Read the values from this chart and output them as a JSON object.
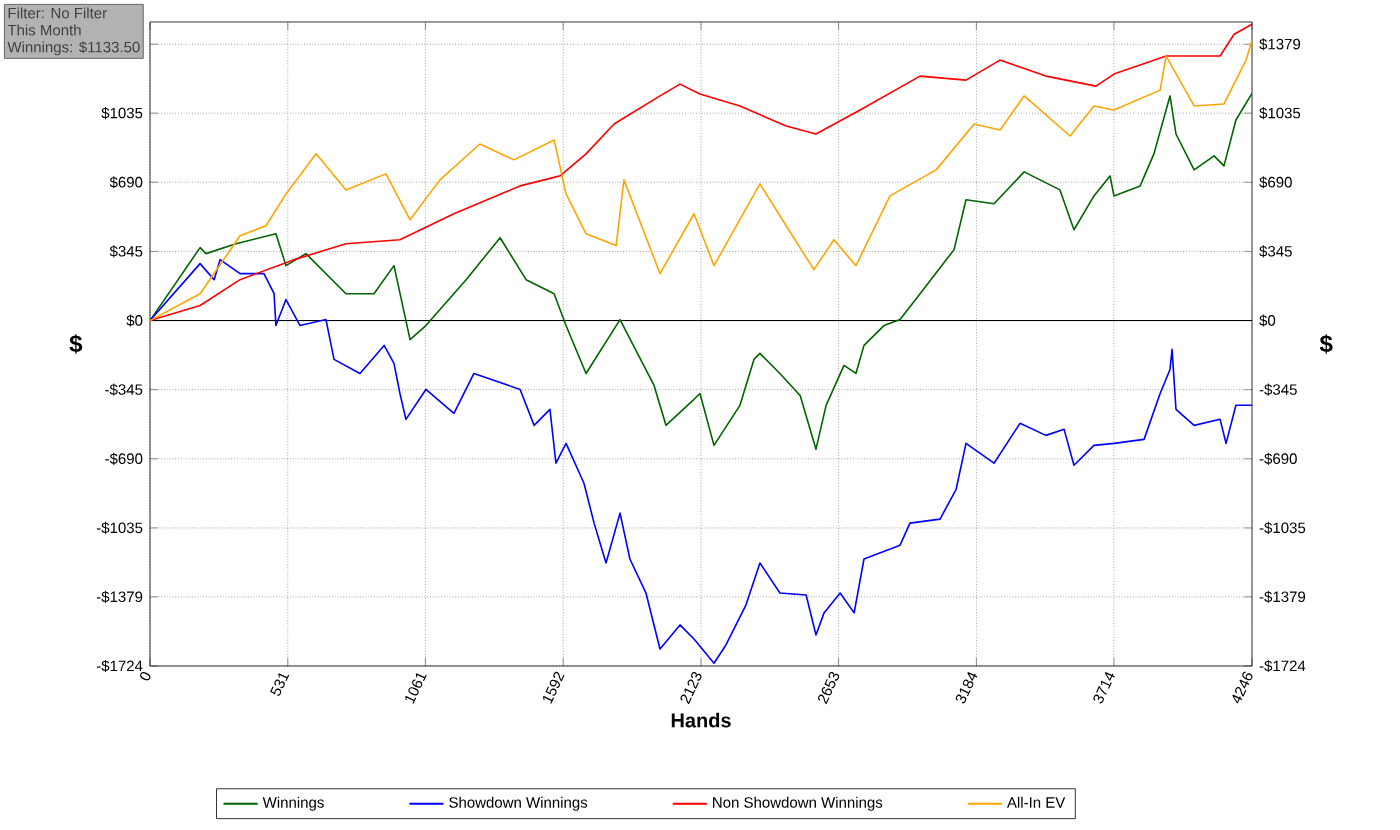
{
  "chart_data": {
    "type": "line",
    "xlabel": "Hands",
    "ylabel": "$",
    "y2label": "$",
    "xlim": [
      0,
      4246
    ],
    "xticks": [
      0,
      531,
      1061,
      1592,
      2123,
      2653,
      3184,
      3714,
      4246
    ],
    "ylim": [
      -1724,
      1490
    ],
    "yticks": [
      {
        "value": -1724,
        "label": "-$1724"
      },
      {
        "value": -1379,
        "label": "-$1379"
      },
      {
        "value": -1035,
        "label": "-$1035"
      },
      {
        "value": -690,
        "label": "-$690"
      },
      {
        "value": -345,
        "label": "-$345"
      },
      {
        "value": 0,
        "label": "$0"
      },
      {
        "value": 345,
        "label": "$345"
      },
      {
        "value": 690,
        "label": "$690"
      },
      {
        "value": 1035,
        "label": "$1035"
      },
      {
        "value": 1379,
        "label": null
      }
    ],
    "y2lim": [
      -1724,
      1490
    ],
    "y2ticks": [
      {
        "value": -1724,
        "label": "-$1724"
      },
      {
        "value": -1379,
        "label": "-$1379"
      },
      {
        "value": -1035,
        "label": "-$1035"
      },
      {
        "value": -690,
        "label": "-$690"
      },
      {
        "value": -345,
        "label": "-$345"
      },
      {
        "value": 0,
        "label": "$0"
      },
      {
        "value": 345,
        "label": "$345"
      },
      {
        "value": 690,
        "label": "$690"
      },
      {
        "value": 1035,
        "label": "$1035"
      },
      {
        "value": 1379,
        "label": "$1379"
      }
    ],
    "grid": true,
    "legend": "bottom",
    "ref_lines": [
      {
        "axis": "y",
        "value": 0,
        "color": "#000000"
      }
    ],
    "annotations": [
      "Filter: No Filter",
      "This Month",
      "Winnings: $1133.50"
    ],
    "series": [
      {
        "name": "Winnings",
        "color": "#006400",
        "x": [
          0,
          193,
          216,
          331,
          485,
          524,
          601,
          755,
          863,
          940,
          1002,
          1063,
          1218,
          1349,
          1449,
          1557,
          1603,
          1680,
          1811,
          1942,
          1988,
          2096,
          2119,
          2173,
          2273,
          2327,
          2350,
          2427,
          2505,
          2566,
          2605,
          2674,
          2720,
          2751,
          2828,
          2890,
          2967,
          3098,
          3144,
          3252,
          3368,
          3506,
          3560,
          3637,
          3699,
          3714,
          3815,
          3868,
          3930,
          3953,
          4023,
          4100,
          4138,
          4184,
          4246
        ],
        "values": [
          0,
          364,
          334,
          383,
          433,
          274,
          334,
          134,
          134,
          274,
          -95,
          -25,
          204,
          413,
          204,
          134,
          -25,
          -264,
          5,
          -324,
          -523,
          -393,
          -364,
          -623,
          -423,
          -194,
          -164,
          -264,
          -374,
          -642,
          -423,
          -224,
          -264,
          -124,
          -25,
          5,
          134,
          354,
          603,
          583,
          742,
          652,
          453,
          622,
          722,
          622,
          672,
          832,
          1121,
          931,
          752,
          822,
          772,
          1001,
          1133.5
        ]
      },
      {
        "name": "Showdown Winnings",
        "color": "#0000ff",
        "x": [
          0,
          193,
          247,
          270,
          347,
          439,
          478,
          485,
          524,
          578,
          678,
          709,
          809,
          902,
          940,
          963,
          986,
          1063,
          1171,
          1248,
          1426,
          1480,
          1541,
          1564,
          1603,
          1672,
          1711,
          1757,
          1811,
          1849,
          1911,
          1965,
          2042,
          2096,
          2173,
          2219,
          2296,
          2350,
          2427,
          2528,
          2566,
          2597,
          2659,
          2713,
          2751,
          2890,
          2928,
          3044,
          3106,
          3144,
          3252,
          3352,
          3452,
          3522,
          3560,
          3637,
          3714,
          3830,
          3892,
          3930,
          3938,
          3953,
          4023,
          4123,
          4146,
          4184,
          4246
        ],
        "values": [
          0,
          284,
          204,
          304,
          234,
          234,
          134,
          -25,
          105,
          -25,
          5,
          -194,
          -264,
          -124,
          -214,
          -364,
          -493,
          -344,
          -463,
          -264,
          -344,
          -523,
          -443,
          -712,
          -613,
          -812,
          -1011,
          -1210,
          -961,
          -1190,
          -1360,
          -1639,
          -1519,
          -1589,
          -1710,
          -1619,
          -1420,
          -1210,
          -1360,
          -1370,
          -1569,
          -1459,
          -1360,
          -1459,
          -1190,
          -1121,
          -1011,
          -991,
          -842,
          -613,
          -712,
          -513,
          -573,
          -543,
          -722,
          -623,
          -613,
          -593,
          -364,
          -244,
          -144,
          -443,
          -523,
          -493,
          -613,
          -423,
          -423
        ]
      },
      {
        "name": "Non Showdown Winnings",
        "color": "#ff0000",
        "x": [
          0,
          193,
          347,
          555,
          755,
          963,
          1171,
          1426,
          1580,
          1680,
          1788,
          1965,
          2042,
          2119,
          2273,
          2451,
          2566,
          2736,
          2967,
          3144,
          3275,
          3452,
          3645,
          3714,
          3915,
          4123,
          4177,
          4246
        ],
        "values": [
          0,
          75,
          204,
          304,
          383,
          403,
          533,
          672,
          722,
          832,
          981,
          1121,
          1180,
          1131,
          1071,
          971,
          931,
          1051,
          1220,
          1200,
          1300,
          1220,
          1170,
          1230,
          1320,
          1320,
          1429,
          1479
        ]
      },
      {
        "name": "All-In EV",
        "color": "#ffa500",
        "x": [
          0,
          193,
          347,
          447,
          524,
          640,
          755,
          909,
          1002,
          1117,
          1271,
          1402,
          1557,
          1603,
          1680,
          1796,
          1826,
          1965,
          2096,
          2173,
          2350,
          2451,
          2558,
          2635,
          2720,
          2851,
          3029,
          3175,
          3275,
          3368,
          3545,
          3637,
          3714,
          3892,
          3915,
          4023,
          4138,
          4223,
          4246
        ],
        "values": [
          0,
          134,
          423,
          473,
          632,
          832,
          652,
          732,
          503,
          702,
          881,
          802,
          901,
          632,
          433,
          374,
          702,
          234,
          533,
          274,
          682,
          473,
          254,
          403,
          274,
          622,
          752,
          981,
          951,
          1121,
          921,
          1071,
          1051,
          1150,
          1320,
          1071,
          1081,
          1300,
          1399
        ]
      }
    ]
  }
}
